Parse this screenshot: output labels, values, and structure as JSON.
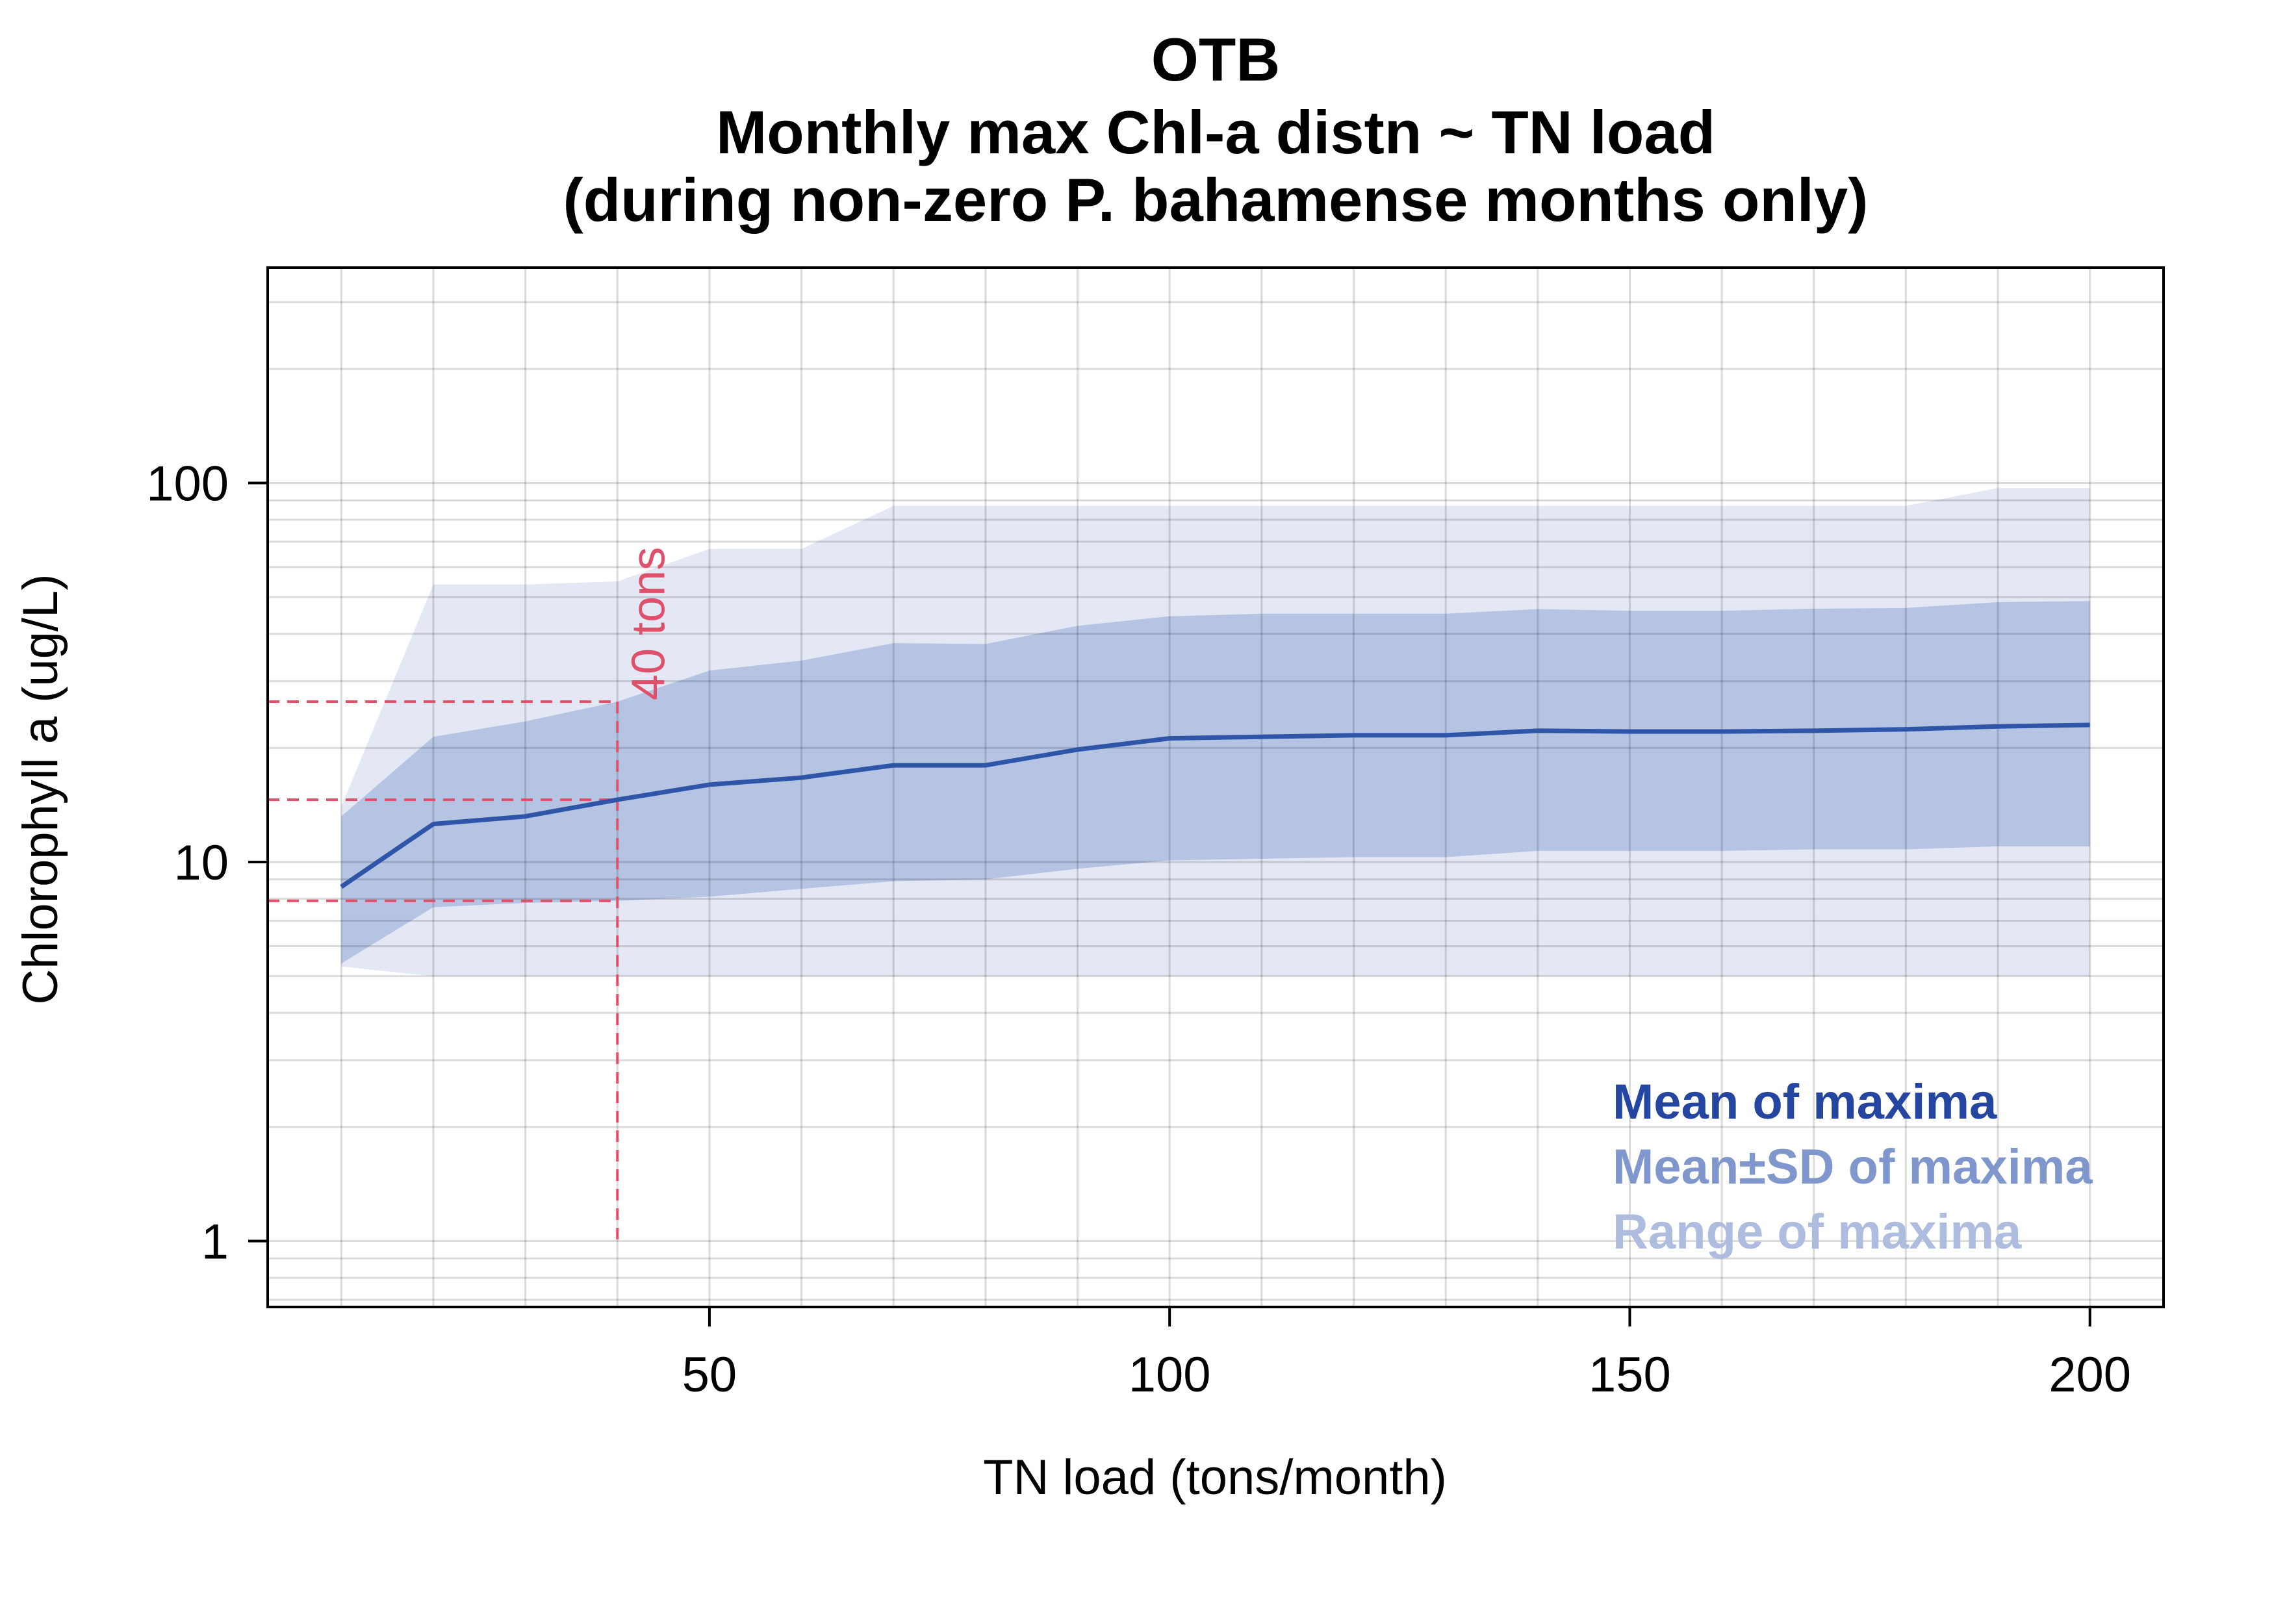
{
  "chart_data": {
    "type": "area",
    "title": "OTB",
    "subtitle": [
      "Monthly max Chl-a distn ~ TN load",
      "(during non-zero P. bahamense months only)"
    ],
    "xlabel": "TN load (tons/month)",
    "ylabel": "Chlorophyll a (ug/L)",
    "xlim": [
      2,
      208
    ],
    "ylim": [
      0.67,
      370
    ],
    "y_scale": "log",
    "grid": true,
    "legend_position": "bottom-right",
    "x_ticks": [
      50,
      100,
      150,
      200
    ],
    "x_tick_labels": [
      "50",
      "100",
      "150",
      "200"
    ],
    "y_ticks": [
      1,
      10,
      100
    ],
    "y_tick_labels": [
      "1",
      "10",
      "100"
    ],
    "x": [
      10,
      20,
      30,
      40,
      50,
      60,
      70,
      80,
      90,
      100,
      110,
      120,
      130,
      140,
      150,
      160,
      170,
      180,
      190,
      200
    ],
    "series": [
      {
        "name": "Mean of maxima",
        "kind": "line",
        "color": "#2F55A8",
        "values": [
          8.6,
          12.6,
          13.2,
          14.6,
          16.0,
          16.7,
          18.0,
          18.0,
          19.8,
          21.2,
          21.4,
          21.6,
          21.6,
          22.2,
          22.1,
          22.1,
          22.2,
          22.4,
          22.8,
          23.0
        ]
      },
      {
        "name": "Mean±SD of maxima",
        "kind": "band",
        "color": "#7F97CC",
        "lower": [
          5.4,
          7.6,
          7.8,
          7.9,
          8.1,
          8.5,
          8.9,
          9.0,
          9.6,
          10.1,
          10.2,
          10.3,
          10.3,
          10.7,
          10.7,
          10.7,
          10.8,
          10.8,
          11.0,
          11.0
        ],
        "upper": [
          13.2,
          21.4,
          23.5,
          26.5,
          32.0,
          34.0,
          37.8,
          37.6,
          42.0,
          44.5,
          45.2,
          45.2,
          45.2,
          46.5,
          46.0,
          46.0,
          46.6,
          46.8,
          48.5,
          48.8
        ]
      },
      {
        "name": "Range of maxima",
        "kind": "band",
        "color": "#AEBCE0",
        "lower": [
          5.3,
          5.0,
          5.0,
          5.0,
          5.0,
          5.0,
          5.0,
          5.0,
          5.0,
          5.0,
          5.0,
          5.0,
          5.0,
          5.0,
          5.0,
          5.0,
          5.0,
          5.0,
          5.0,
          5.0
        ],
        "upper": [
          14.0,
          54.0,
          54.0,
          55.0,
          67.0,
          67.0,
          87.0,
          87.0,
          87.0,
          87.0,
          87.0,
          87.0,
          87.0,
          87.0,
          87.0,
          87.0,
          87.0,
          87.0,
          97.0,
          97.0
        ]
      }
    ],
    "reference": {
      "x": 40,
      "label": "40 tons",
      "color": "#E0506A",
      "y_levels": [
        26.5,
        14.6,
        7.9
      ]
    }
  },
  "legend": [
    {
      "label": "Mean of maxima",
      "color": "#2446A0"
    },
    {
      "label": "Mean±SD of maxima",
      "color": "#7F97CC"
    },
    {
      "label": "Range of maxima",
      "color": "#AEBCE0"
    }
  ]
}
